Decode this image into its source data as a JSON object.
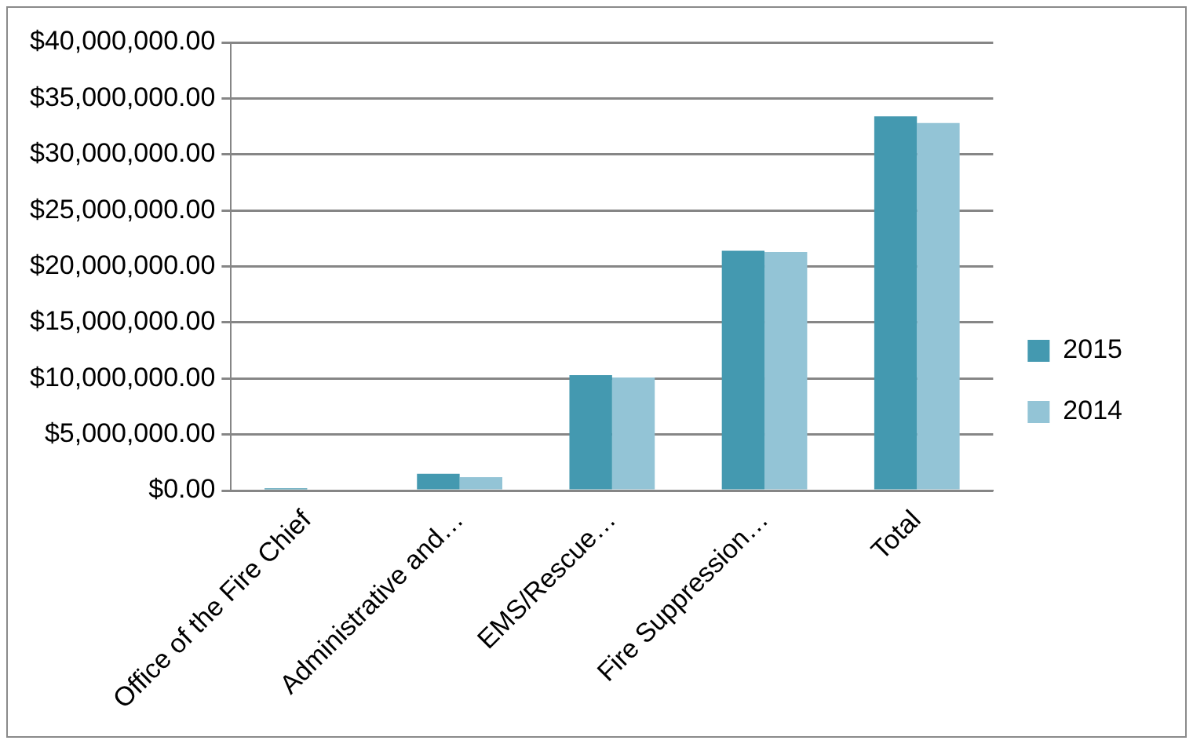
{
  "chart_data": {
    "type": "bar",
    "categories": [
      "Office of the Fire Chief",
      "Administrative and…",
      "EMS/Rescue…",
      "Fire Suppression…",
      "Total"
    ],
    "series": [
      {
        "name": "2015",
        "color": "#4499b0",
        "values": [
          200000.0,
          1500000.0,
          10300000.0,
          21400000.0,
          33400000.0
        ]
      },
      {
        "name": "2014",
        "color": "#93c4d6",
        "values": [
          0,
          1200000.0,
          10100000.0,
          21300000.0,
          32800000.0
        ]
      }
    ],
    "ylim": [
      0,
      40000000
    ],
    "yticks": [
      {
        "value": 0,
        "label": "$0.00"
      },
      {
        "value": 5000000,
        "label": "$5,000,000.00"
      },
      {
        "value": 10000000,
        "label": "$10,000,000.00"
      },
      {
        "value": 15000000,
        "label": "$15,000,000.00"
      },
      {
        "value": 20000000,
        "label": "$20,000,000.00"
      },
      {
        "value": 25000000,
        "label": "$25,000,000.00"
      },
      {
        "value": 30000000,
        "label": "$30,000,000.00"
      },
      {
        "value": 35000000,
        "label": "$35,000,000.00"
      },
      {
        "value": 40000000,
        "label": "$40,000,000.00"
      }
    ],
    "grid": "y",
    "legend": "right"
  }
}
